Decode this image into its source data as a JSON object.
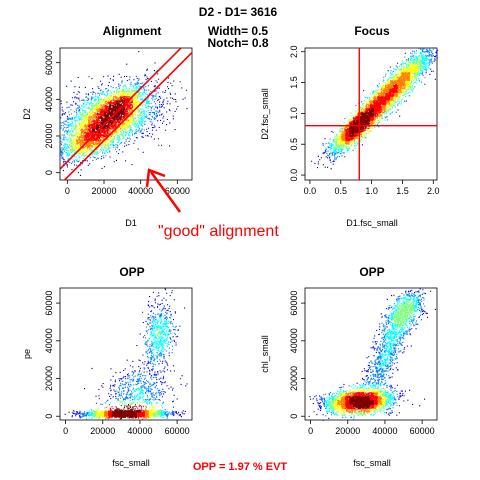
{
  "header": {
    "title": "D2 - D1= 3616",
    "width_text": "Width= 0.5",
    "notch_text": "Notch= 0.8"
  },
  "annotation": {
    "alignment_note": "\"good\" alignment",
    "opp_summary": "OPP = 1.97 % EVT"
  },
  "colors": {
    "accent_red": "#ff0000",
    "density_palette": [
      "#00007f",
      "#0000ff",
      "#007fff",
      "#00ffff",
      "#7fff7f",
      "#ffff00",
      "#ff7f00",
      "#ff0000",
      "#7f0000"
    ]
  },
  "chart_data": [
    {
      "id": "alignment",
      "type": "scatter",
      "title": "Alignment",
      "xlabel": "D1",
      "ylabel": "D2",
      "xlim": [
        -4000,
        68000
      ],
      "ylim": [
        -4000,
        68000
      ],
      "xticks": [
        0,
        20000,
        40000,
        60000
      ],
      "yticks": [
        0,
        20000,
        40000,
        60000
      ],
      "xtick_labels": [
        "0",
        "20000",
        "40000",
        "60000"
      ],
      "ytick_labels": [
        "0",
        "20000",
        "40000",
        "60000"
      ],
      "lines": [
        {
          "kind": "diagonal",
          "intercept": 6000,
          "slope": 1
        },
        {
          "kind": "diagonal",
          "intercept": -2500,
          "slope": 1
        }
      ],
      "clusters": [
        {
          "cx": 22000,
          "cy": 30000,
          "sx": 14000,
          "sy": 9000,
          "rho": 0.45
        },
        {
          "cx": 12000,
          "cy": 18000,
          "sx": 7000,
          "sy": 5000,
          "rho": 0.6
        },
        {
          "cx": 28000,
          "cy": 36000,
          "sx": 6000,
          "sy": 5000,
          "rho": 0.6
        }
      ],
      "density_peak": {
        "x": 22000,
        "y": 29000
      }
    },
    {
      "id": "focus",
      "type": "scatter",
      "title": "Focus",
      "xlabel": "D1.fsc_small",
      "ylabel": "D2.fsc_small",
      "xlim": [
        -0.08,
        2.06
      ],
      "ylim": [
        -0.08,
        2.06
      ],
      "xticks": [
        0.0,
        0.5,
        1.0,
        1.5,
        2.0
      ],
      "yticks": [
        0.0,
        0.5,
        1.0,
        1.5,
        2.0
      ],
      "xtick_labels": [
        "0.0",
        "0.5",
        "1.0",
        "1.5",
        "2.0"
      ],
      "ytick_labels": [
        "0.0",
        "0.5",
        "1.0",
        "1.5",
        "2.0"
      ],
      "vline": 0.8,
      "hline": 0.8,
      "clusters": [
        {
          "cx": 1.3,
          "cy": 1.35,
          "sx": 0.35,
          "sy": 0.36,
          "rho": 0.93
        },
        {
          "cx": 0.75,
          "cy": 0.78,
          "sx": 0.2,
          "sy": 0.2,
          "rho": 0.85
        }
      ],
      "density_peak": {
        "x": 1.3,
        "y": 1.35
      }
    },
    {
      "id": "opp1",
      "type": "scatter",
      "title": "OPP",
      "xlabel": "fsc_small",
      "ylabel": "pe",
      "xlim": [
        -3000,
        68000
      ],
      "ylim": [
        -2000,
        68000
      ],
      "xticks": [
        0,
        20000,
        40000,
        60000
      ],
      "yticks": [
        0,
        20000,
        40000,
        60000
      ],
      "xtick_labels": [
        "0",
        "20000",
        "40000",
        "60000"
      ],
      "ytick_labels": [
        "0",
        "20000",
        "40000",
        "60000"
      ],
      "clusters": [
        {
          "cx": 32000,
          "cy": 1500,
          "sx": 11000,
          "sy": 900,
          "rho": 0
        },
        {
          "cx": 50000,
          "cy": 44000,
          "sx": 4000,
          "sy": 9000,
          "rho": 0.2
        },
        {
          "cx": 38000,
          "cy": 12000,
          "sx": 9000,
          "sy": 8000,
          "rho": 0.3
        }
      ],
      "density_peak": {
        "x": 36000,
        "y": 1500
      }
    },
    {
      "id": "opp2",
      "type": "scatter",
      "title": "OPP",
      "xlabel": "fsc_small",
      "ylabel": "chl_small",
      "xlim": [
        -3000,
        68000
      ],
      "ylim": [
        -2000,
        68000
      ],
      "xticks": [
        0,
        20000,
        40000,
        60000
      ],
      "yticks": [
        0,
        20000,
        40000,
        60000
      ],
      "xtick_labels": [
        "0",
        "20000",
        "40000",
        "60000"
      ],
      "ytick_labels": [
        "0",
        "20000",
        "40000",
        "60000"
      ],
      "clusters": [
        {
          "cx": 26000,
          "cy": 8000,
          "sx": 9000,
          "sy": 3000,
          "rho": 0.2
        },
        {
          "cx": 40000,
          "cy": 32000,
          "sx": 7000,
          "sy": 14000,
          "rho": 0.85
        },
        {
          "cx": 50000,
          "cy": 55000,
          "sx": 5000,
          "sy": 6000,
          "rho": 0.5
        }
      ],
      "density_peak": {
        "x": 24000,
        "y": 8000
      }
    }
  ]
}
